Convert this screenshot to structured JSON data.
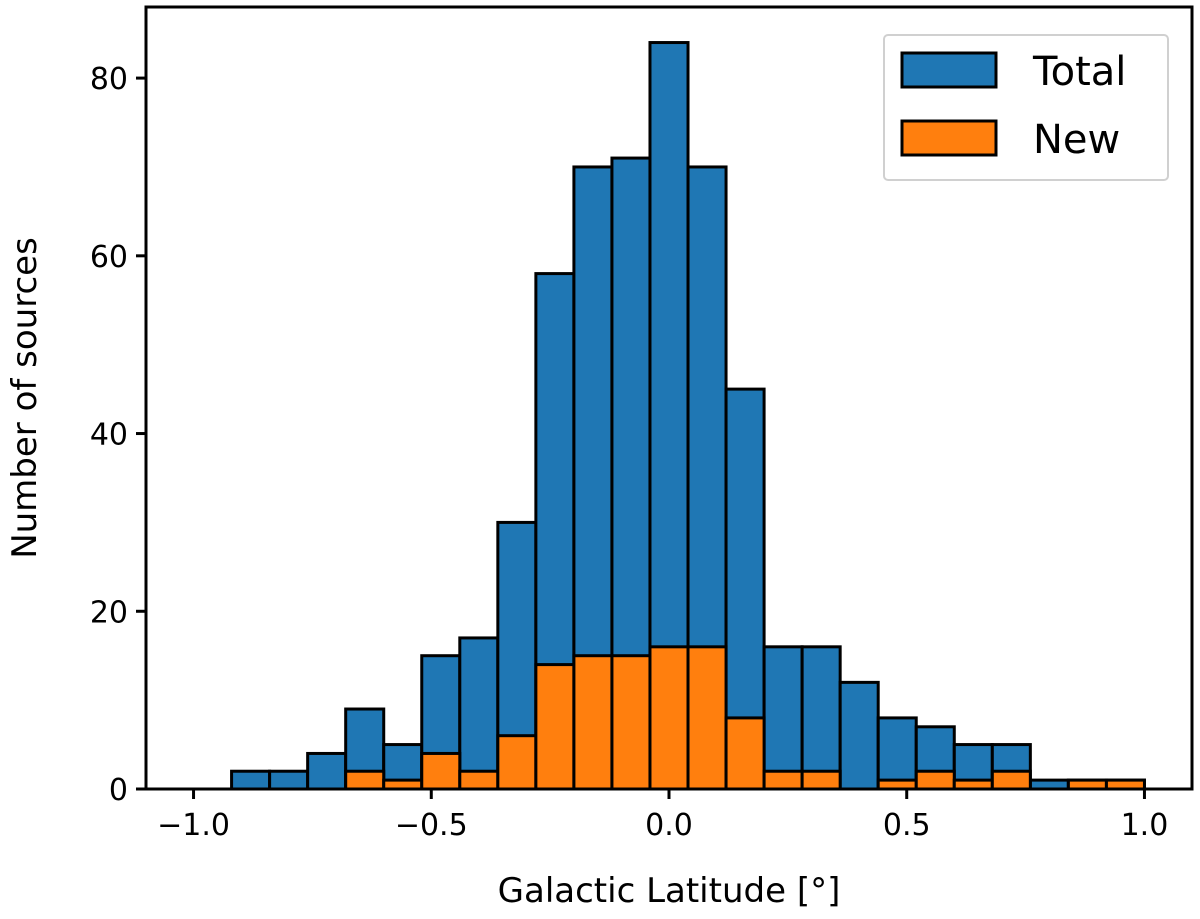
{
  "chart_data": {
    "type": "bar",
    "xlabel": "Galactic Latitude [°]",
    "ylabel": "Number of sources",
    "xlim": [
      -1.1,
      1.1
    ],
    "ylim": [
      0,
      88
    ],
    "xticks": [
      -1.0,
      -0.5,
      0.0,
      0.5,
      1.0
    ],
    "xtick_labels": [
      "−1.0",
      "−0.5",
      "0.0",
      "0.5",
      "1.0"
    ],
    "yticks": [
      0,
      20,
      40,
      60,
      80
    ],
    "ytick_labels": [
      "0",
      "20",
      "40",
      "60",
      "80"
    ],
    "bin_edges": [
      -1.0,
      -0.92,
      -0.84,
      -0.76,
      -0.68,
      -0.6,
      -0.52,
      -0.44,
      -0.36,
      -0.28,
      -0.2,
      -0.12,
      -0.04,
      0.04,
      0.12,
      0.2,
      0.28,
      0.36,
      0.44,
      0.52,
      0.6,
      0.68,
      0.76,
      0.84,
      0.92,
      1.0
    ],
    "series": [
      {
        "name": "Total",
        "color": "#1f77b4",
        "values": [
          0,
          2,
          2,
          4,
          9,
          5,
          15,
          17,
          30,
          58,
          70,
          71,
          84,
          70,
          45,
          16,
          16,
          12,
          8,
          7,
          5,
          5,
          1,
          1,
          1
        ]
      },
      {
        "name": "New",
        "color": "#ff7f0e",
        "values": [
          0,
          0,
          0,
          0,
          2,
          1,
          4,
          2,
          6,
          14,
          15,
          15,
          16,
          16,
          8,
          2,
          2,
          0,
          1,
          2,
          1,
          2,
          0,
          1,
          1
        ]
      }
    ],
    "legend_position": "top-right",
    "grid": false
  }
}
